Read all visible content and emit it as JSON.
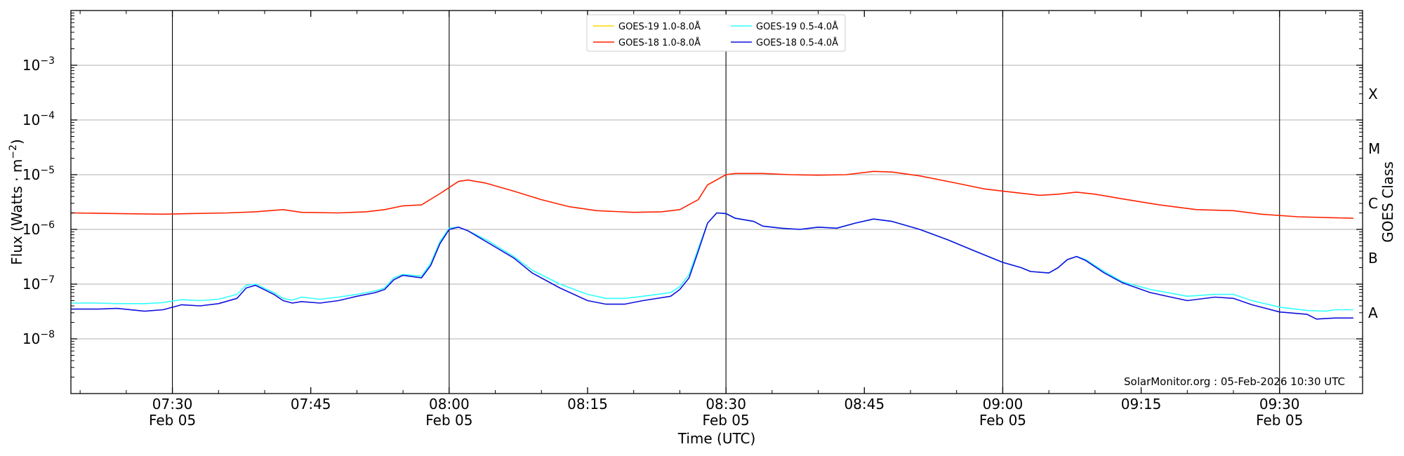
{
  "chart_data": {
    "type": "line",
    "title": "",
    "xlabel": "Time (UTC)",
    "ylabel_main": "Flux (Watts · m",
    "ylabel_sup": "−2",
    "ylabel_close": ")",
    "y2label": "GOES Class",
    "yscale": "log",
    "ylim": [
      1e-09,
      0.01
    ],
    "xlim": [
      "07:19",
      "09:39"
    ],
    "grid": "horizontal at each decade",
    "legend_position": "top-center",
    "credit": "SolarMonitor.org : 05-Feb-2026 10:30 UTC",
    "y_ticks": [
      {
        "exp": -8,
        "base": "10",
        "exp_label": "−8"
      },
      {
        "exp": -7,
        "base": "10",
        "exp_label": "−7"
      },
      {
        "exp": -6,
        "base": "10",
        "exp_label": "−6"
      },
      {
        "exp": -5,
        "base": "10",
        "exp_label": "−5"
      },
      {
        "exp": -4,
        "base": "10",
        "exp_label": "−4"
      },
      {
        "exp": -3,
        "base": "10",
        "exp_label": "−3"
      }
    ],
    "x_ticks": [
      {
        "time": "07:30",
        "date": "Feb 05"
      },
      {
        "time": "07:45",
        "date": ""
      },
      {
        "time": "08:00",
        "date": "Feb 05"
      },
      {
        "time": "08:15",
        "date": ""
      },
      {
        "time": "08:30",
        "date": "Feb 05"
      },
      {
        "time": "08:45",
        "date": ""
      },
      {
        "time": "09:00",
        "date": "Feb 05"
      },
      {
        "time": "09:15",
        "date": ""
      },
      {
        "time": "09:30",
        "date": "Feb 05"
      }
    ],
    "vertical_lines": [
      "07:30",
      "08:00",
      "08:30",
      "09:00",
      "09:30"
    ],
    "goes_classes": [
      {
        "label": "A",
        "flux": 3e-08
      },
      {
        "label": "B",
        "flux": 3e-07
      },
      {
        "label": "C",
        "flux": 3e-06
      },
      {
        "label": "M",
        "flux": 3e-05
      },
      {
        "label": "X",
        "flux": 0.0003
      }
    ],
    "series": [
      {
        "name": "GOES-19 1.0-8.0Å",
        "color": "#ffd700",
        "points": []
      },
      {
        "name": "GOES-18 1.0-8.0Å",
        "color": "#ff2200",
        "points": [
          [
            "07:19",
            2e-06
          ],
          [
            "07:24",
            1.95e-06
          ],
          [
            "07:29",
            1.9e-06
          ],
          [
            "07:32",
            1.95e-06
          ],
          [
            "07:36",
            2e-06
          ],
          [
            "07:39",
            2.1e-06
          ],
          [
            "07:42",
            2.3e-06
          ],
          [
            "07:44",
            2.05e-06
          ],
          [
            "07:48",
            2e-06
          ],
          [
            "07:51",
            2.1e-06
          ],
          [
            "07:53",
            2.3e-06
          ],
          [
            "07:55",
            2.7e-06
          ],
          [
            "07:57",
            2.8e-06
          ],
          [
            "07:59",
            4.5e-06
          ],
          [
            "08:01",
            7.5e-06
          ],
          [
            "08:02",
            8e-06
          ],
          [
            "08:04",
            7e-06
          ],
          [
            "08:07",
            5e-06
          ],
          [
            "08:10",
            3.5e-06
          ],
          [
            "08:13",
            2.6e-06
          ],
          [
            "08:16",
            2.2e-06
          ],
          [
            "08:20",
            2.05e-06
          ],
          [
            "08:23",
            2.1e-06
          ],
          [
            "08:25",
            2.3e-06
          ],
          [
            "08:27",
            3.5e-06
          ],
          [
            "08:28",
            6.5e-06
          ],
          [
            "08:30",
            1e-05
          ],
          [
            "08:31",
            1.05e-05
          ],
          [
            "08:34",
            1.05e-05
          ],
          [
            "08:37",
            1e-05
          ],
          [
            "08:40",
            9.8e-06
          ],
          [
            "08:43",
            1e-05
          ],
          [
            "08:46",
            1.15e-05
          ],
          [
            "08:48",
            1.12e-05
          ],
          [
            "08:51",
            9.5e-06
          ],
          [
            "08:55",
            7e-06
          ],
          [
            "08:58",
            5.5e-06
          ],
          [
            "09:01",
            4.8e-06
          ],
          [
            "09:04",
            4.2e-06
          ],
          [
            "09:06",
            4.4e-06
          ],
          [
            "09:08",
            4.8e-06
          ],
          [
            "09:10",
            4.4e-06
          ],
          [
            "09:13",
            3.6e-06
          ],
          [
            "09:17",
            2.8e-06
          ],
          [
            "09:21",
            2.3e-06
          ],
          [
            "09:25",
            2.2e-06
          ],
          [
            "09:28",
            1.9e-06
          ],
          [
            "09:32",
            1.7e-06
          ],
          [
            "09:38",
            1.6e-06
          ]
        ]
      },
      {
        "name": "GOES-19 0.5-4.0Å",
        "color": "#33ffff",
        "points": [
          [
            "07:19",
            4.5e-08
          ],
          [
            "07:22",
            4.5e-08
          ],
          [
            "07:24",
            4.4e-08
          ],
          [
            "07:27",
            4.4e-08
          ],
          [
            "07:29",
            4.6e-08
          ],
          [
            "07:31",
            5.2e-08
          ],
          [
            "07:33",
            5e-08
          ],
          [
            "07:35",
            5.3e-08
          ],
          [
            "07:37",
            6.5e-08
          ],
          [
            "07:38",
            9.5e-08
          ],
          [
            "07:39",
            1e-07
          ],
          [
            "07:41",
            7e-08
          ],
          [
            "07:42",
            5.5e-08
          ],
          [
            "07:43",
            5.1e-08
          ],
          [
            "07:44",
            5.8e-08
          ],
          [
            "07:46",
            5.3e-08
          ],
          [
            "07:48",
            5.8e-08
          ],
          [
            "07:50",
            6.5e-08
          ],
          [
            "07:52",
            7.5e-08
          ],
          [
            "07:53",
            8.5e-08
          ],
          [
            "07:54",
            1.3e-07
          ],
          [
            "07:55",
            1.5e-07
          ],
          [
            "07:57",
            1.4e-07
          ],
          [
            "07:58",
            2.4e-07
          ],
          [
            "07:59",
            6e-07
          ],
          [
            "08:00",
            1.05e-06
          ],
          [
            "08:01",
            1.1e-06
          ],
          [
            "08:02",
            9.5e-07
          ],
          [
            "08:04",
            6.5e-07
          ],
          [
            "08:07",
            3.2e-07
          ],
          [
            "08:09",
            1.8e-07
          ],
          [
            "08:12",
            1e-07
          ],
          [
            "08:15",
            6.5e-08
          ],
          [
            "08:17",
            5.5e-08
          ],
          [
            "08:19",
            5.5e-08
          ],
          [
            "08:21",
            6e-08
          ],
          [
            "08:24",
            7e-08
          ],
          [
            "08:25",
            9e-08
          ],
          [
            "08:26",
            1.5e-07
          ],
          [
            "08:27",
            4.5e-07
          ],
          [
            "08:28",
            1.3e-06
          ],
          [
            "08:29",
            2e-06
          ],
          [
            "08:30",
            1.95e-06
          ],
          [
            "08:31",
            1.6e-06
          ],
          [
            "08:33",
            1.4e-06
          ],
          [
            "08:34",
            1.15e-06
          ],
          [
            "08:36",
            1.05e-06
          ],
          [
            "08:38",
            1e-06
          ],
          [
            "08:40",
            1.1e-06
          ],
          [
            "08:42",
            1.05e-06
          ],
          [
            "08:44",
            1.3e-06
          ],
          [
            "08:46",
            1.55e-06
          ],
          [
            "08:48",
            1.4e-06
          ],
          [
            "08:51",
            1e-06
          ],
          [
            "08:54",
            6.5e-07
          ],
          [
            "08:57",
            4e-07
          ],
          [
            "09:00",
            2.5e-07
          ],
          [
            "09:02",
            2e-07
          ],
          [
            "09:03",
            1.7e-07
          ],
          [
            "09:05",
            1.6e-07
          ],
          [
            "09:06",
            2e-07
          ],
          [
            "09:07",
            2.8e-07
          ],
          [
            "09:08",
            3.2e-07
          ],
          [
            "09:09",
            2.8e-07
          ],
          [
            "09:11",
            1.7e-07
          ],
          [
            "09:13",
            1.1e-07
          ],
          [
            "09:16",
            8e-08
          ],
          [
            "09:20",
            6e-08
          ],
          [
            "09:23",
            6.5e-08
          ],
          [
            "09:25",
            6.5e-08
          ],
          [
            "09:27",
            5e-08
          ],
          [
            "09:30",
            3.8e-08
          ],
          [
            "09:33",
            3.3e-08
          ],
          [
            "09:35",
            3.2e-08
          ],
          [
            "09:36",
            3.4e-08
          ],
          [
            "09:38",
            3.4e-08
          ]
        ]
      },
      {
        "name": "GOES-18 0.5-4.0Å",
        "color": "#1010dd",
        "points": [
          [
            "07:19",
            3.5e-08
          ],
          [
            "07:22",
            3.5e-08
          ],
          [
            "07:24",
            3.6e-08
          ],
          [
            "07:27",
            3.2e-08
          ],
          [
            "07:29",
            3.4e-08
          ],
          [
            "07:31",
            4.2e-08
          ],
          [
            "07:33",
            4e-08
          ],
          [
            "07:35",
            4.4e-08
          ],
          [
            "07:37",
            5.5e-08
          ],
          [
            "07:38",
            8.5e-08
          ],
          [
            "07:39",
            9.5e-08
          ],
          [
            "07:41",
            6.5e-08
          ],
          [
            "07:42",
            5e-08
          ],
          [
            "07:43",
            4.5e-08
          ],
          [
            "07:44",
            4.8e-08
          ],
          [
            "07:46",
            4.5e-08
          ],
          [
            "07:48",
            5e-08
          ],
          [
            "07:50",
            6e-08
          ],
          [
            "07:52",
            7e-08
          ],
          [
            "07:53",
            8e-08
          ],
          [
            "07:54",
            1.2e-07
          ],
          [
            "07:55",
            1.45e-07
          ],
          [
            "07:57",
            1.3e-07
          ],
          [
            "07:58",
            2.2e-07
          ],
          [
            "07:59",
            5.5e-07
          ],
          [
            "08:00",
            1e-06
          ],
          [
            "08:01",
            1.1e-06
          ],
          [
            "08:02",
            9.5e-07
          ],
          [
            "08:04",
            6e-07
          ],
          [
            "08:07",
            3e-07
          ],
          [
            "08:09",
            1.6e-07
          ],
          [
            "08:12",
            8.5e-08
          ],
          [
            "08:15",
            5e-08
          ],
          [
            "08:17",
            4.3e-08
          ],
          [
            "08:19",
            4.3e-08
          ],
          [
            "08:21",
            5e-08
          ],
          [
            "08:24",
            6e-08
          ],
          [
            "08:25",
            8e-08
          ],
          [
            "08:26",
            1.3e-07
          ],
          [
            "08:27",
            4e-07
          ],
          [
            "08:28",
            1.3e-06
          ],
          [
            "08:29",
            2e-06
          ],
          [
            "08:30",
            1.95e-06
          ],
          [
            "08:31",
            1.6e-06
          ],
          [
            "08:33",
            1.4e-06
          ],
          [
            "08:34",
            1.15e-06
          ],
          [
            "08:36",
            1.05e-06
          ],
          [
            "08:38",
            1e-06
          ],
          [
            "08:40",
            1.1e-06
          ],
          [
            "08:42",
            1.05e-06
          ],
          [
            "08:44",
            1.3e-06
          ],
          [
            "08:46",
            1.55e-06
          ],
          [
            "08:48",
            1.4e-06
          ],
          [
            "08:51",
            1e-06
          ],
          [
            "08:54",
            6.5e-07
          ],
          [
            "08:57",
            4e-07
          ],
          [
            "09:00",
            2.5e-07
          ],
          [
            "09:02",
            2e-07
          ],
          [
            "09:03",
            1.7e-07
          ],
          [
            "09:05",
            1.6e-07
          ],
          [
            "09:06",
            2e-07
          ],
          [
            "09:07",
            2.8e-07
          ],
          [
            "09:08",
            3.2e-07
          ],
          [
            "09:09",
            2.7e-07
          ],
          [
            "09:11",
            1.6e-07
          ],
          [
            "09:13",
            1.05e-07
          ],
          [
            "09:16",
            7e-08
          ],
          [
            "09:20",
            5e-08
          ],
          [
            "09:23",
            5.8e-08
          ],
          [
            "09:25",
            5.5e-08
          ],
          [
            "09:27",
            4.2e-08
          ],
          [
            "09:30",
            3.1e-08
          ],
          [
            "09:33",
            2.8e-08
          ],
          [
            "09:34",
            2.3e-08
          ],
          [
            "09:36",
            2.4e-08
          ],
          [
            "09:38",
            2.4e-08
          ]
        ]
      }
    ]
  }
}
